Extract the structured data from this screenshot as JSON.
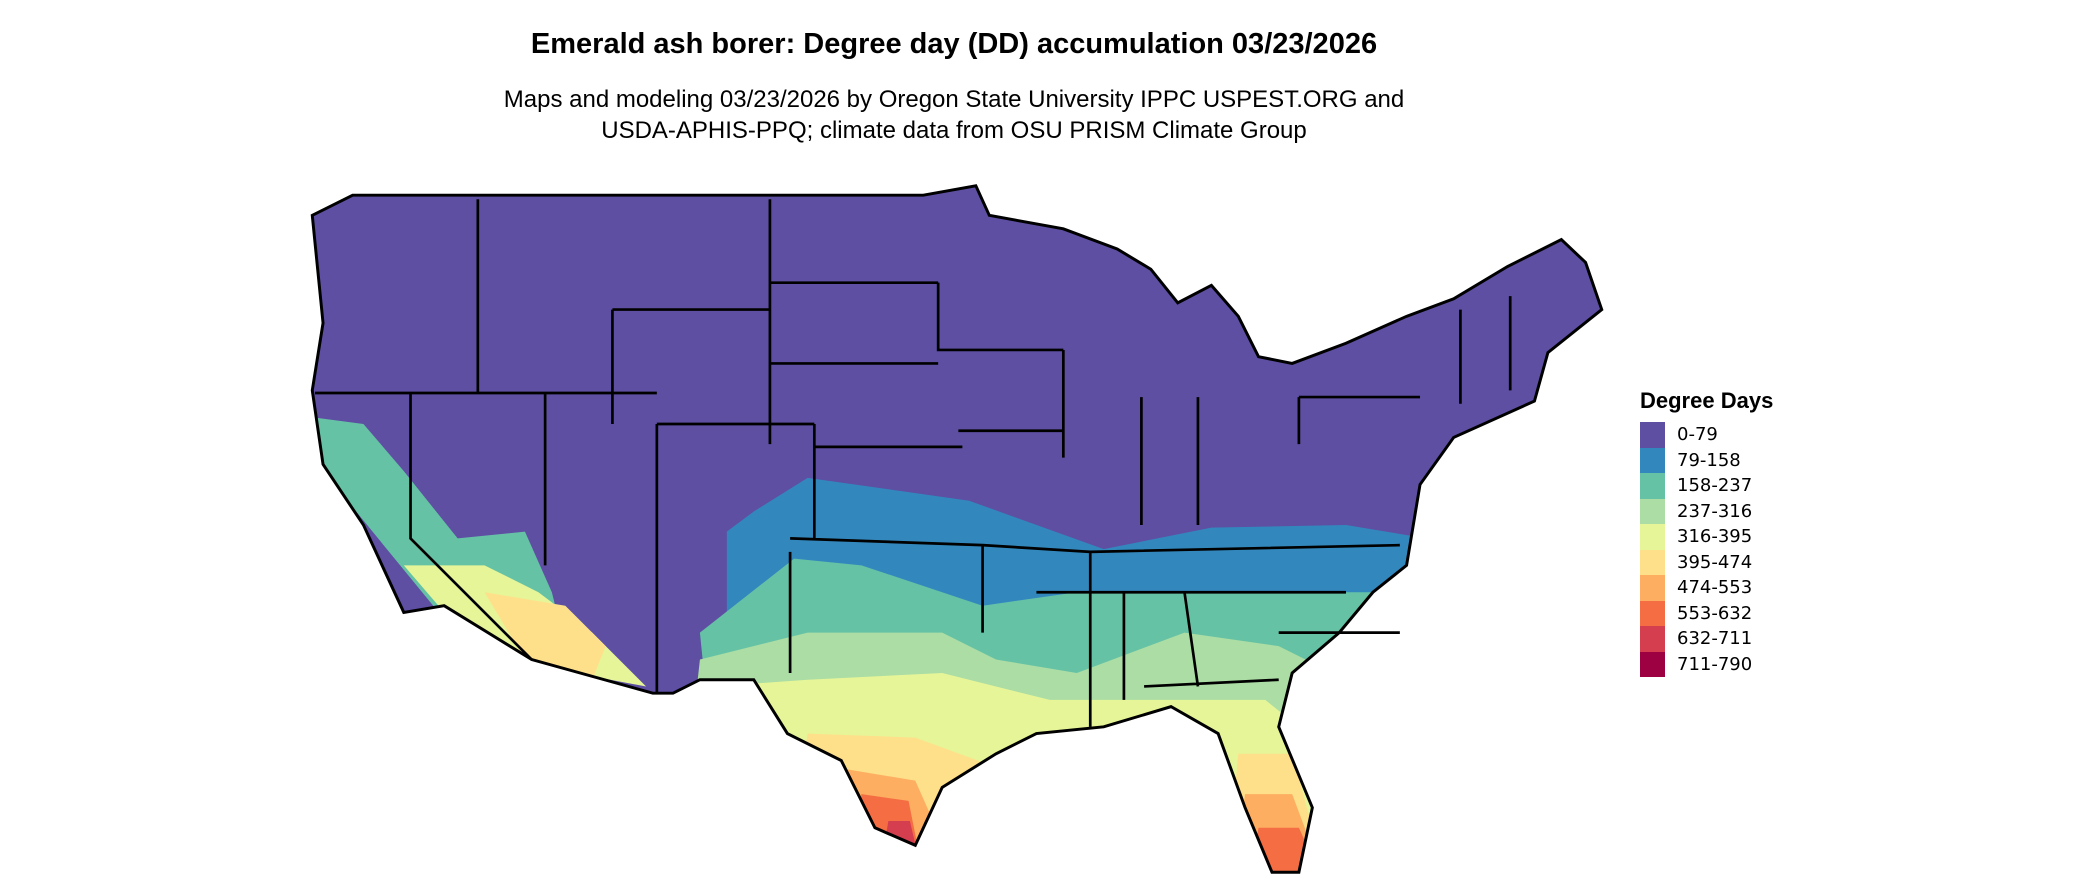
{
  "header": {
    "title": "Emerald ash borer: Degree day (DD) accumulation 03/23/2026",
    "subtitle_line1": "Maps and modeling 03/23/2026 by Oregon State University IPPC USPEST.ORG and",
    "subtitle_line2": "USDA-APHIS-PPQ; climate data from OSU PRISM Climate Group"
  },
  "legend": {
    "title": "Degree Days",
    "items": [
      {
        "label": "0-79",
        "color": "#5E4FA2"
      },
      {
        "label": "79-158",
        "color": "#3288BD"
      },
      {
        "label": "158-237",
        "color": "#66C2A5"
      },
      {
        "label": "237-316",
        "color": "#ABDDA4"
      },
      {
        "label": "316-395",
        "color": "#E6F598"
      },
      {
        "label": "395-474",
        "color": "#FEE08B"
      },
      {
        "label": "474-553",
        "color": "#FDAE61"
      },
      {
        "label": "553-632",
        "color": "#F46D43"
      },
      {
        "label": "632-711",
        "color": "#D53E4F"
      },
      {
        "label": "711-790",
        "color": "#9E0142"
      }
    ]
  }
}
